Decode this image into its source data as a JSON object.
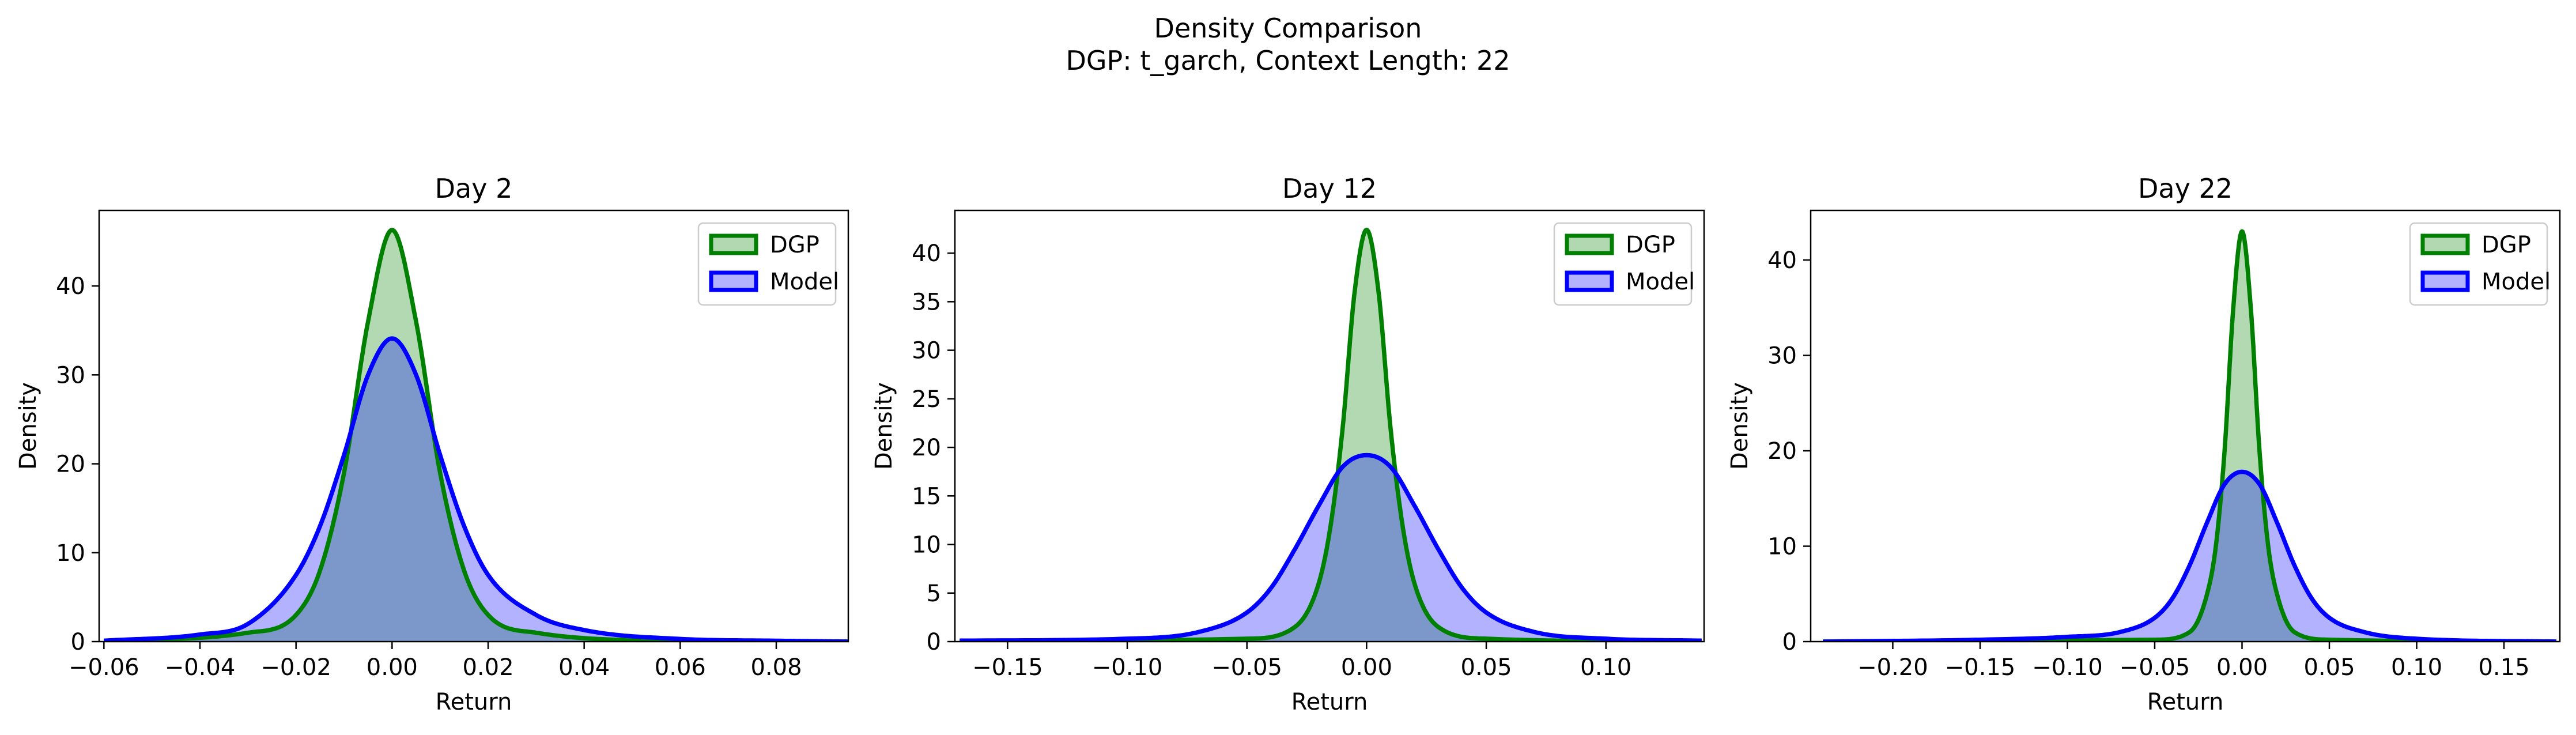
{
  "figure": {
    "title_line1": "Density Comparison",
    "title_line2": "DGP: t_garch, Context Length: 22"
  },
  "colors": {
    "dgp_line": "#008000",
    "dgp_fill": "#b2d8b2",
    "model_line": "#0000ff",
    "model_fill": "#b2b2ff",
    "overlap_fill": "#7f99c8"
  },
  "chart_data": [
    {
      "type": "area",
      "title": "Day 2",
      "xlabel": "Return",
      "ylabel": "Density",
      "xlim": [
        -0.061,
        0.095
      ],
      "ylim": [
        0,
        48.5
      ],
      "xticks": [
        -0.06,
        -0.04,
        -0.02,
        0.0,
        0.02,
        0.04,
        0.06,
        0.08
      ],
      "xtick_labels": [
        "−0.06",
        "−0.04",
        "−0.02",
        "0.00",
        "0.02",
        "0.04",
        "0.06",
        "0.08"
      ],
      "yticks": [
        0,
        10,
        20,
        30,
        40
      ],
      "ytick_labels": [
        "0",
        "10",
        "20",
        "30",
        "40"
      ],
      "legend": {
        "position": "top-right",
        "entries": [
          "DGP",
          "Model"
        ]
      },
      "series": [
        {
          "name": "DGP",
          "x": [
            -0.06,
            -0.03,
            -0.02,
            -0.015,
            -0.01,
            -0.005,
            0.0,
            0.005,
            0.01,
            0.015,
            0.02,
            0.03,
            0.06,
            0.095
          ],
          "y": [
            0.1,
            1.0,
            3.0,
            8.0,
            19.0,
            36.0,
            46.3,
            36.0,
            19.0,
            8.0,
            3.0,
            1.0,
            0.1,
            0.0
          ]
        },
        {
          "name": "Model",
          "x": [
            -0.06,
            -0.04,
            -0.03,
            -0.02,
            -0.015,
            -0.01,
            -0.005,
            0.0,
            0.005,
            0.01,
            0.015,
            0.02,
            0.03,
            0.04,
            0.06,
            0.08,
            0.095
          ],
          "y": [
            0.1,
            0.8,
            2.0,
            7.5,
            13.0,
            21.0,
            30.0,
            34.1,
            30.0,
            21.0,
            13.0,
            7.5,
            3.0,
            1.3,
            0.3,
            0.1,
            0.0
          ]
        }
      ]
    },
    {
      "type": "area",
      "title": "Day 12",
      "xlabel": "Return",
      "ylabel": "Density",
      "xlim": [
        -0.172,
        0.141
      ],
      "ylim": [
        0,
        44.4
      ],
      "xticks": [
        -0.15,
        -0.1,
        -0.05,
        0.0,
        0.05,
        0.1
      ],
      "xtick_labels": [
        "−0.15",
        "−0.10",
        "−0.05",
        "0.00",
        "0.05",
        "0.10"
      ],
      "yticks": [
        0,
        5,
        10,
        15,
        20,
        25,
        30,
        35,
        40
      ],
      "ytick_labels": [
        "0",
        "5",
        "10",
        "15",
        "20",
        "25",
        "30",
        "35",
        "40"
      ],
      "legend": {
        "position": "top-right",
        "entries": [
          "DGP",
          "Model"
        ]
      },
      "series": [
        {
          "name": "DGP",
          "x": [
            -0.17,
            -0.05,
            -0.03,
            -0.02,
            -0.015,
            -0.01,
            -0.005,
            0.0,
            0.005,
            0.01,
            0.015,
            0.02,
            0.03,
            0.05,
            0.14
          ],
          "y": [
            0.0,
            0.3,
            1.5,
            6.0,
            12.0,
            22.0,
            36.0,
            42.4,
            36.0,
            22.0,
            12.0,
            6.0,
            1.5,
            0.3,
            0.0
          ]
        },
        {
          "name": "Model",
          "x": [
            -0.17,
            -0.1,
            -0.07,
            -0.05,
            -0.04,
            -0.03,
            -0.02,
            -0.01,
            0.0,
            0.01,
            0.02,
            0.03,
            0.04,
            0.05,
            0.07,
            0.1,
            0.14
          ],
          "y": [
            0.1,
            0.3,
            1.0,
            3.0,
            5.5,
            9.5,
            14.0,
            18.0,
            19.2,
            18.0,
            14.0,
            9.5,
            5.5,
            3.0,
            1.0,
            0.3,
            0.1
          ]
        }
      ]
    },
    {
      "type": "area",
      "title": "Day 22",
      "xlabel": "Return",
      "ylabel": "Density",
      "xlim": [
        -0.247,
        0.182
      ],
      "ylim": [
        0,
        45.2
      ],
      "xticks": [
        -0.2,
        -0.15,
        -0.1,
        -0.05,
        0.0,
        0.05,
        0.1,
        0.15
      ],
      "xtick_labels": [
        "−0.20",
        "−0.15",
        "−0.10",
        "−0.05",
        "0.00",
        "0.05",
        "0.10",
        "0.15"
      ],
      "yticks": [
        0,
        10,
        20,
        30,
        40
      ],
      "ytick_labels": [
        "0",
        "10",
        "20",
        "30",
        "40"
      ],
      "legend": {
        "position": "top-right",
        "entries": [
          "DGP",
          "Model"
        ]
      },
      "series": [
        {
          "name": "DGP",
          "x": [
            -0.24,
            -0.05,
            -0.03,
            -0.02,
            -0.015,
            -0.01,
            -0.005,
            0.0,
            0.005,
            0.01,
            0.015,
            0.02,
            0.03,
            0.05,
            0.18
          ],
          "y": [
            0.0,
            0.2,
            1.0,
            5.0,
            10.0,
            20.0,
            35.0,
            43.0,
            35.0,
            20.0,
            10.0,
            5.0,
            1.0,
            0.2,
            0.0
          ]
        },
        {
          "name": "Model",
          "x": [
            -0.24,
            -0.15,
            -0.1,
            -0.07,
            -0.05,
            -0.04,
            -0.03,
            -0.02,
            -0.01,
            0.0,
            0.01,
            0.02,
            0.03,
            0.04,
            0.05,
            0.07,
            0.1,
            0.18
          ],
          "y": [
            0.0,
            0.2,
            0.5,
            1.0,
            2.5,
            4.5,
            8.0,
            12.5,
            16.5,
            17.8,
            16.5,
            12.5,
            8.0,
            4.5,
            2.5,
            1.0,
            0.3,
            0.0
          ]
        }
      ]
    }
  ]
}
